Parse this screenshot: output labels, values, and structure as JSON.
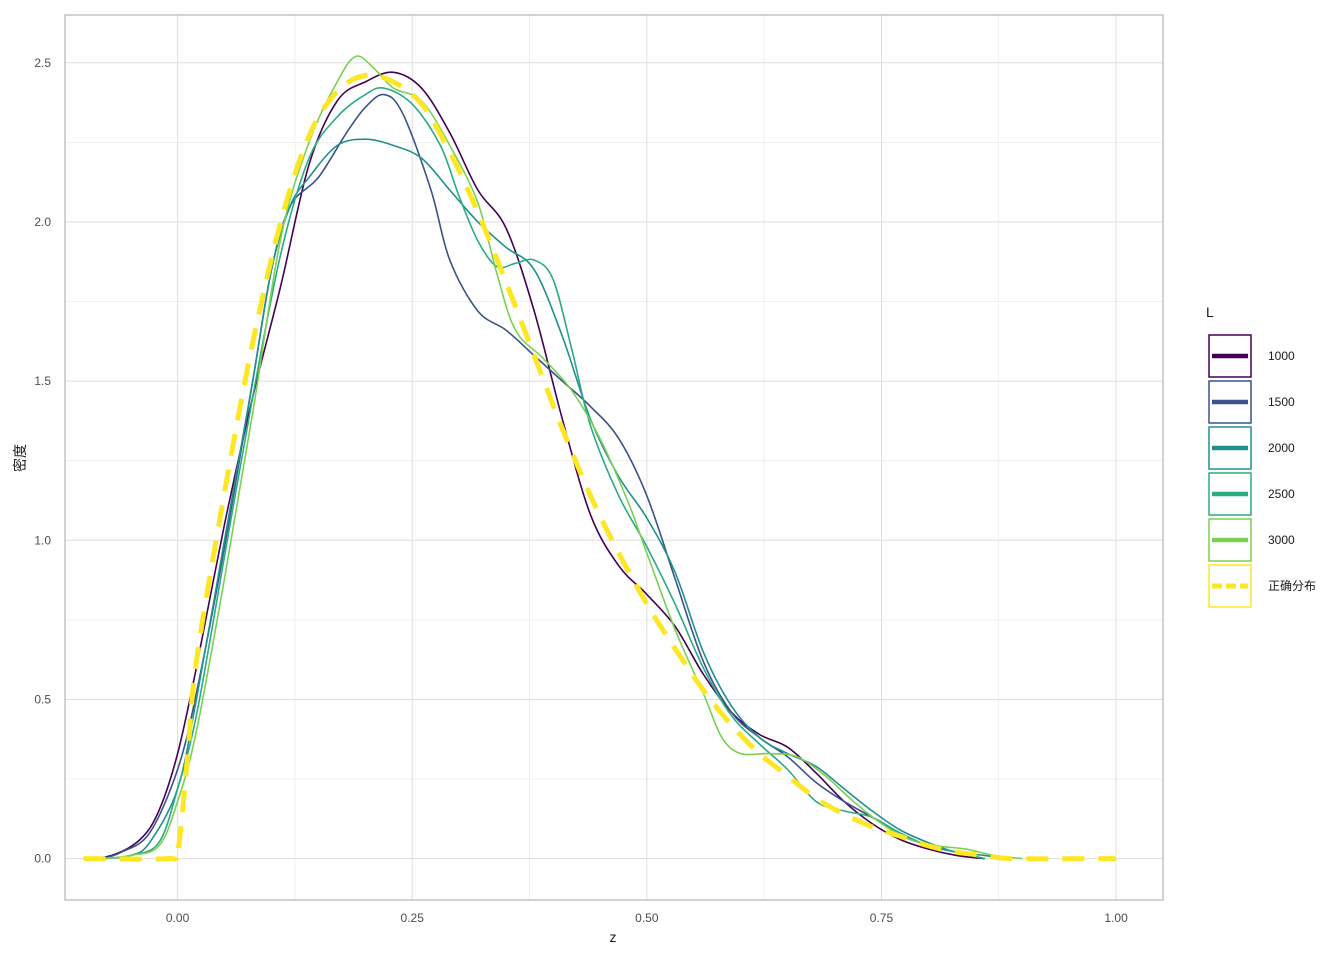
{
  "chart_data": {
    "type": "line",
    "title": "",
    "xlabel": "z",
    "ylabel": "密度",
    "xlim": [
      -0.12,
      1.05
    ],
    "ylim": [
      -0.13,
      2.65
    ],
    "x_ticks": [
      0,
      0.25,
      0.5,
      0.75,
      1.0
    ],
    "x_tick_labels": [
      "0.00",
      "0.25",
      "0.50",
      "0.75",
      "1.00"
    ],
    "y_ticks": [
      0,
      0.5,
      1.0,
      1.5,
      2.0,
      2.5
    ],
    "y_tick_labels": [
      "0.0",
      "0.5",
      "1.0",
      "1.5",
      "2.0",
      "2.5"
    ],
    "grid": true,
    "legend": {
      "title": "L",
      "position": "right"
    },
    "series": [
      {
        "name": "1000",
        "color": "#440154",
        "dashed": false,
        "points": [
          [
            -0.1,
            0
          ],
          [
            -0.07,
            0.01
          ],
          [
            -0.04,
            0.06
          ],
          [
            -0.02,
            0.15
          ],
          [
            0,
            0.33
          ],
          [
            0.02,
            0.6
          ],
          [
            0.05,
            1.05
          ],
          [
            0.08,
            1.45
          ],
          [
            0.11,
            1.8
          ],
          [
            0.14,
            2.18
          ],
          [
            0.17,
            2.38
          ],
          [
            0.2,
            2.44
          ],
          [
            0.23,
            2.47
          ],
          [
            0.26,
            2.42
          ],
          [
            0.29,
            2.28
          ],
          [
            0.32,
            2.1
          ],
          [
            0.35,
            1.98
          ],
          [
            0.38,
            1.72
          ],
          [
            0.41,
            1.38
          ],
          [
            0.44,
            1.08
          ],
          [
            0.47,
            0.92
          ],
          [
            0.5,
            0.83
          ],
          [
            0.53,
            0.73
          ],
          [
            0.56,
            0.58
          ],
          [
            0.59,
            0.46
          ],
          [
            0.62,
            0.39
          ],
          [
            0.65,
            0.35
          ],
          [
            0.68,
            0.27
          ],
          [
            0.71,
            0.18
          ],
          [
            0.74,
            0.11
          ],
          [
            0.77,
            0.06
          ],
          [
            0.8,
            0.03
          ],
          [
            0.83,
            0.01
          ],
          [
            0.86,
            0
          ]
        ]
      },
      {
        "name": "1500",
        "color": "#3b528b",
        "dashed": false,
        "points": [
          [
            -0.08,
            0
          ],
          [
            -0.06,
            0.02
          ],
          [
            -0.03,
            0.08
          ],
          [
            0,
            0.28
          ],
          [
            0.02,
            0.52
          ],
          [
            0.05,
            0.98
          ],
          [
            0.08,
            1.5
          ],
          [
            0.1,
            1.85
          ],
          [
            0.12,
            2.05
          ],
          [
            0.15,
            2.14
          ],
          [
            0.18,
            2.28
          ],
          [
            0.2,
            2.36
          ],
          [
            0.22,
            2.4
          ],
          [
            0.24,
            2.34
          ],
          [
            0.27,
            2.1
          ],
          [
            0.29,
            1.88
          ],
          [
            0.32,
            1.72
          ],
          [
            0.35,
            1.66
          ],
          [
            0.38,
            1.58
          ],
          [
            0.41,
            1.5
          ],
          [
            0.44,
            1.42
          ],
          [
            0.47,
            1.32
          ],
          [
            0.5,
            1.14
          ],
          [
            0.53,
            0.88
          ],
          [
            0.56,
            0.62
          ],
          [
            0.59,
            0.46
          ],
          [
            0.62,
            0.38
          ],
          [
            0.65,
            0.32
          ],
          [
            0.68,
            0.24
          ],
          [
            0.71,
            0.18
          ],
          [
            0.74,
            0.13
          ],
          [
            0.77,
            0.08
          ],
          [
            0.8,
            0.04
          ],
          [
            0.83,
            0.02
          ],
          [
            0.86,
            0
          ]
        ]
      },
      {
        "name": "2000",
        "color": "#21908c",
        "dashed": false,
        "points": [
          [
            -0.08,
            0
          ],
          [
            -0.05,
            0.01
          ],
          [
            -0.03,
            0.05
          ],
          [
            0,
            0.22
          ],
          [
            0.02,
            0.5
          ],
          [
            0.05,
            1.0
          ],
          [
            0.08,
            1.5
          ],
          [
            0.1,
            1.85
          ],
          [
            0.12,
            2.05
          ],
          [
            0.14,
            2.14
          ],
          [
            0.17,
            2.24
          ],
          [
            0.2,
            2.26
          ],
          [
            0.23,
            2.24
          ],
          [
            0.26,
            2.2
          ],
          [
            0.29,
            2.1
          ],
          [
            0.32,
            2.0
          ],
          [
            0.35,
            1.92
          ],
          [
            0.38,
            1.85
          ],
          [
            0.41,
            1.64
          ],
          [
            0.44,
            1.38
          ],
          [
            0.47,
            1.2
          ],
          [
            0.5,
            1.07
          ],
          [
            0.53,
            0.9
          ],
          [
            0.56,
            0.65
          ],
          [
            0.59,
            0.48
          ],
          [
            0.62,
            0.38
          ],
          [
            0.65,
            0.33
          ],
          [
            0.68,
            0.29
          ],
          [
            0.71,
            0.22
          ],
          [
            0.74,
            0.15
          ],
          [
            0.77,
            0.09
          ],
          [
            0.8,
            0.05
          ],
          [
            0.83,
            0.02
          ],
          [
            0.86,
            0.01
          ],
          [
            0.88,
            0
          ]
        ]
      },
      {
        "name": "2500",
        "color": "#2aab84",
        "dashed": false,
        "points": [
          [
            -0.08,
            0
          ],
          [
            -0.05,
            0.01
          ],
          [
            -0.02,
            0.05
          ],
          [
            0,
            0.22
          ],
          [
            0.02,
            0.45
          ],
          [
            0.05,
            0.95
          ],
          [
            0.08,
            1.45
          ],
          [
            0.11,
            1.9
          ],
          [
            0.14,
            2.2
          ],
          [
            0.17,
            2.33
          ],
          [
            0.2,
            2.4
          ],
          [
            0.22,
            2.42
          ],
          [
            0.25,
            2.37
          ],
          [
            0.28,
            2.24
          ],
          [
            0.3,
            2.08
          ],
          [
            0.32,
            1.94
          ],
          [
            0.34,
            1.86
          ],
          [
            0.36,
            1.87
          ],
          [
            0.38,
            1.88
          ],
          [
            0.4,
            1.82
          ],
          [
            0.42,
            1.6
          ],
          [
            0.44,
            1.36
          ],
          [
            0.47,
            1.14
          ],
          [
            0.5,
            0.98
          ],
          [
            0.53,
            0.8
          ],
          [
            0.56,
            0.6
          ],
          [
            0.59,
            0.45
          ],
          [
            0.62,
            0.36
          ],
          [
            0.65,
            0.28
          ],
          [
            0.68,
            0.18
          ],
          [
            0.71,
            0.15
          ],
          [
            0.74,
            0.13
          ],
          [
            0.77,
            0.08
          ],
          [
            0.8,
            0.04
          ],
          [
            0.83,
            0.02
          ],
          [
            0.86,
            0
          ]
        ]
      },
      {
        "name": "3000",
        "color": "#7ad151",
        "dashed": false,
        "points": [
          [
            -0.08,
            0
          ],
          [
            -0.05,
            0.01
          ],
          [
            -0.02,
            0.04
          ],
          [
            0,
            0.18
          ],
          [
            0.02,
            0.4
          ],
          [
            0.05,
            0.88
          ],
          [
            0.08,
            1.4
          ],
          [
            0.11,
            1.95
          ],
          [
            0.14,
            2.25
          ],
          [
            0.17,
            2.44
          ],
          [
            0.19,
            2.52
          ],
          [
            0.21,
            2.48
          ],
          [
            0.23,
            2.42
          ],
          [
            0.26,
            2.38
          ],
          [
            0.29,
            2.24
          ],
          [
            0.32,
            2.06
          ],
          [
            0.34,
            1.84
          ],
          [
            0.36,
            1.66
          ],
          [
            0.39,
            1.57
          ],
          [
            0.42,
            1.47
          ],
          [
            0.45,
            1.32
          ],
          [
            0.48,
            1.12
          ],
          [
            0.5,
            0.96
          ],
          [
            0.53,
            0.72
          ],
          [
            0.56,
            0.52
          ],
          [
            0.58,
            0.38
          ],
          [
            0.6,
            0.33
          ],
          [
            0.63,
            0.33
          ],
          [
            0.66,
            0.32
          ],
          [
            0.69,
            0.26
          ],
          [
            0.72,
            0.18
          ],
          [
            0.75,
            0.11
          ],
          [
            0.78,
            0.06
          ],
          [
            0.81,
            0.04
          ],
          [
            0.84,
            0.03
          ],
          [
            0.87,
            0.01
          ],
          [
            0.9,
            0
          ]
        ]
      },
      {
        "name": "正确分布",
        "color": "#fde725",
        "dashed": true,
        "points": [
          [
            -0.1,
            0
          ],
          [
            -0.01,
            0
          ],
          [
            0.0,
            0.02
          ],
          [
            0.01,
            0.3
          ],
          [
            0.02,
            0.62
          ],
          [
            0.05,
            1.15
          ],
          [
            0.08,
            1.62
          ],
          [
            0.11,
            2.0
          ],
          [
            0.14,
            2.27
          ],
          [
            0.17,
            2.41
          ],
          [
            0.2,
            2.46
          ],
          [
            0.23,
            2.44
          ],
          [
            0.26,
            2.37
          ],
          [
            0.29,
            2.22
          ],
          [
            0.32,
            2.03
          ],
          [
            0.35,
            1.81
          ],
          [
            0.38,
            1.58
          ],
          [
            0.41,
            1.35
          ],
          [
            0.44,
            1.14
          ],
          [
            0.47,
            0.96
          ],
          [
            0.5,
            0.8
          ],
          [
            0.53,
            0.66
          ],
          [
            0.56,
            0.53
          ],
          [
            0.59,
            0.42
          ],
          [
            0.62,
            0.33
          ],
          [
            0.65,
            0.26
          ],
          [
            0.68,
            0.19
          ],
          [
            0.71,
            0.14
          ],
          [
            0.74,
            0.1
          ],
          [
            0.77,
            0.07
          ],
          [
            0.8,
            0.04
          ],
          [
            0.83,
            0.02
          ],
          [
            0.86,
            0.01
          ],
          [
            0.89,
            0
          ],
          [
            1.0,
            0
          ]
        ]
      }
    ]
  }
}
